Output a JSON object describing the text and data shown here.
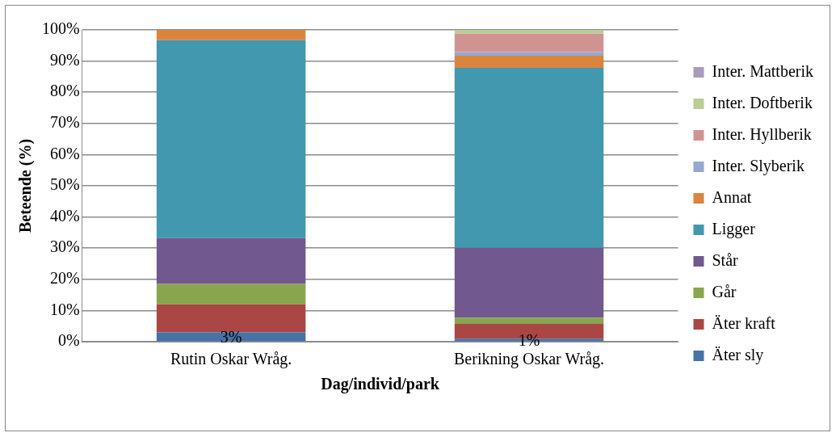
{
  "chart_data": {
    "type": "bar",
    "stacked": true,
    "xlabel": "Dag/individ/park",
    "ylabel": "Beteende (%)",
    "categories": [
      "Rutin Oskar Wråg.",
      "Berikning Oskar Wråg."
    ],
    "ylim": [
      0,
      100
    ],
    "yticks": [
      {
        "value": 0,
        "label": "0%"
      },
      {
        "value": 10,
        "label": "10%"
      },
      {
        "value": 20,
        "label": "20%"
      },
      {
        "value": 30,
        "label": "30%"
      },
      {
        "value": 40,
        "label": "40%"
      },
      {
        "value": 50,
        "label": "50%"
      },
      {
        "value": 60,
        "label": "60%"
      },
      {
        "value": 70,
        "label": "70%"
      },
      {
        "value": 80,
        "label": "80%"
      },
      {
        "value": 90,
        "label": "90%"
      },
      {
        "value": 100,
        "label": "100%"
      }
    ],
    "grid": "y",
    "legend": "right",
    "series": [
      {
        "name": "Äter sly",
        "color": "#4572a7",
        "values": [
          3,
          1
        ],
        "value_labels": [
          "3%",
          "1%"
        ]
      },
      {
        "name": "Äter kraft",
        "color": "#aa4643",
        "values": [
          9,
          4.7
        ]
      },
      {
        "name": "Går",
        "color": "#89a54e",
        "values": [
          6.5,
          2
        ]
      },
      {
        "name": "Står",
        "color": "#71588f",
        "values": [
          14.7,
          22.4
        ]
      },
      {
        "name": "Ligger",
        "color": "#4198af",
        "values": [
          63.5,
          57.7
        ]
      },
      {
        "name": "Annat",
        "color": "#db843d",
        "values": [
          3.3,
          3.9
        ]
      },
      {
        "name": "Inter. Slyberik",
        "color": "#93a9cf",
        "values": [
          0,
          1.2
        ]
      },
      {
        "name": "Inter. Hyllberik",
        "color": "#d19392",
        "values": [
          0,
          5.9
        ]
      },
      {
        "name": "Inter. Doftberik",
        "color": "#b9cd96",
        "values": [
          0,
          1.2
        ]
      },
      {
        "name": "Inter. Mattberik",
        "color": "#a99bbd",
        "values": [
          0,
          0
        ]
      }
    ]
  }
}
